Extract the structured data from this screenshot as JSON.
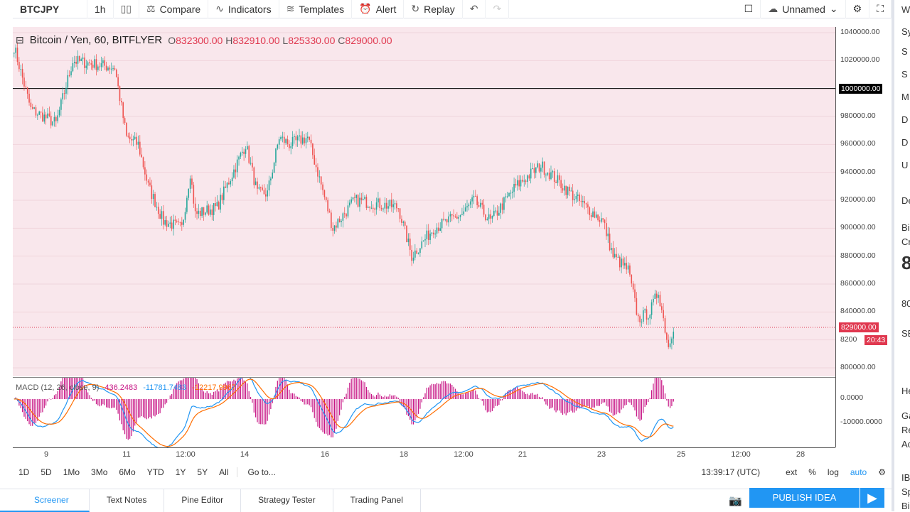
{
  "toolbar": {
    "symbol": "BTCJPY",
    "interval": "1h",
    "compare": "Compare",
    "indicators": "Indicators",
    "templates": "Templates",
    "alert": "Alert",
    "replay": "Replay",
    "layout": "Unnamed"
  },
  "legend": {
    "title": "Bitcoin / Yen, 60, BITFLYER",
    "o_label": "O",
    "o": "832300.00",
    "h_label": "H",
    "h": "832910.00",
    "l_label": "L",
    "l": "825330.00",
    "c_label": "C",
    "c": "829000.00"
  },
  "macd": {
    "title": "MACD (12, 26, close, 9)",
    "hist": "436.2483",
    "macd": "-11781.7483",
    "signal": "-12217.9967",
    "axis": [
      "0.0000",
      "-10000.0000"
    ]
  },
  "price_axis": [
    "1040000.00",
    "1020000.00",
    "980000.00",
    "960000.00",
    "940000.00",
    "920000.00",
    "900000.00",
    "880000.00",
    "860000.00",
    "840000.00",
    "800000.00"
  ],
  "price_axis_highlight": "1000000.00",
  "last_price": "829000.00",
  "countdown": "20:43",
  "partial_label": "8200",
  "time_axis": [
    "9",
    "11",
    "12:00",
    "14",
    "16",
    "18",
    "12:00",
    "21",
    "23",
    "25",
    "12:00",
    "28"
  ],
  "range": {
    "items": [
      "1D",
      "5D",
      "1Mo",
      "3Mo",
      "6Mo",
      "YTD",
      "1Y",
      "5Y",
      "All"
    ],
    "goto": "Go to...",
    "clock": "13:39:17 (UTC)",
    "ext": "ext",
    "pct": "%",
    "log": "log",
    "auto": "auto"
  },
  "bottom": {
    "tabs": [
      "Screener",
      "Text Notes",
      "Pine Editor",
      "Strategy Tester",
      "Trading Panel"
    ],
    "publish": "PUBLISH IDEA"
  },
  "side": [
    "W",
    "Sy",
    "S",
    "S",
    "M",
    "D",
    "D",
    "U",
    "De",
    "Bi",
    "Cr",
    "8",
    "80",
    "SE",
    "He",
    "Ga",
    "Re",
    "Ac",
    "IB",
    "Sp",
    "Bi"
  ],
  "colors": {
    "up": "#26a69a",
    "down": "#ef5350",
    "macd": "#2196f3",
    "signal": "#ff6d00",
    "hist": "#c71585",
    "bg": "#f9e7ec"
  },
  "chart_data": {
    "type": "candlestick",
    "ylim": [
      800000,
      1040000
    ],
    "waypoints": [
      [
        0,
        1030000
      ],
      [
        10,
        985000
      ],
      [
        25,
        975000
      ],
      [
        35,
        1020000
      ],
      [
        60,
        1015000
      ],
      [
        67,
        965000
      ],
      [
        74,
        960000
      ],
      [
        80,
        930000
      ],
      [
        89,
        905000
      ],
      [
        100,
        900000
      ],
      [
        105,
        940000
      ],
      [
        108,
        910000
      ],
      [
        121,
        915000
      ],
      [
        138,
        960000
      ],
      [
        145,
        925000
      ],
      [
        151,
        925000
      ],
      [
        158,
        965000
      ],
      [
        164,
        960000
      ],
      [
        175,
        965000
      ],
      [
        181,
        940000
      ],
      [
        190,
        900000
      ],
      [
        203,
        920000
      ],
      [
        229,
        915000
      ],
      [
        237,
        880000
      ],
      [
        250,
        900000
      ],
      [
        267,
        910000
      ],
      [
        274,
        920000
      ],
      [
        284,
        905000
      ],
      [
        299,
        930000
      ],
      [
        314,
        945000
      ],
      [
        323,
        935000
      ],
      [
        336,
        920000
      ],
      [
        351,
        905000
      ],
      [
        357,
        880000
      ],
      [
        366,
        870000
      ],
      [
        372,
        835000
      ],
      [
        379,
        840000
      ],
      [
        384,
        855000
      ],
      [
        390,
        815000
      ],
      [
        393,
        830000
      ]
    ]
  }
}
